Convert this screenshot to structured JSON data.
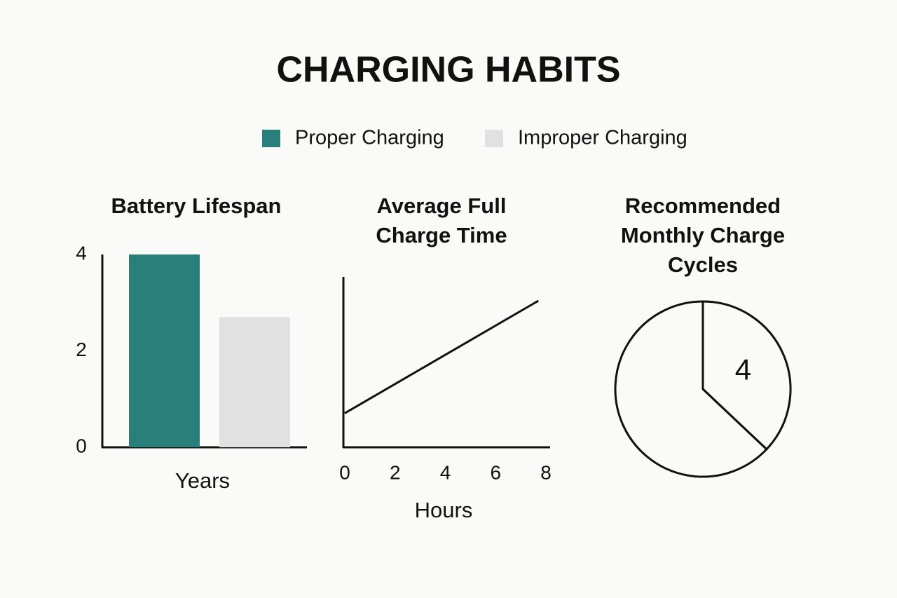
{
  "title": "CHARGING HABITS",
  "chart_data": [
    {
      "type": "bar",
      "title": "Battery Lifespan",
      "xlabel": "Years",
      "categories": [
        null
      ],
      "series": [
        {
          "name": "Proper Charging",
          "color": "#2a7f7a",
          "values": [
            4
          ]
        },
        {
          "name": "Improper Charging",
          "color": "#e1e1e1",
          "values": [
            2.7
          ]
        }
      ],
      "ylim": [
        0,
        4
      ],
      "yticks": [
        0,
        2,
        4
      ],
      "grid": false
    },
    {
      "type": "line",
      "title": "Average Full Charge Time",
      "xlabel": "Hours",
      "x": [
        0,
        7.7
      ],
      "values": [
        0.2,
        0.86
      ],
      "color": "#111111",
      "xlim": [
        0,
        8
      ],
      "xticks": [
        0,
        2,
        4,
        6,
        8
      ],
      "ylim": [
        0,
        1
      ],
      "grid": false
    },
    {
      "type": "pie",
      "title": "Recommended Monthly Charge Cycles",
      "values": [
        4,
        6.8
      ],
      "color": "#111111"
    }
  ]
}
